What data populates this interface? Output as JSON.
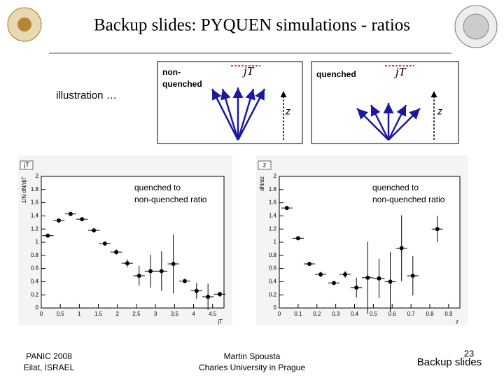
{
  "title": "Backup slides: PYQUEN simulations - ratios",
  "illustration": {
    "caption": "illustration …",
    "left_label": [
      "non-",
      "quenched"
    ],
    "right_label": "quenched",
    "jt_label": "jT",
    "z_label": "z"
  },
  "footer": {
    "left": [
      "PANIC 2008",
      "Eilat, ISRAEL"
    ],
    "center": [
      "Martin Spousta",
      "Charles University in Prague"
    ],
    "right": "Backup slides",
    "page": "23"
  },
  "chart_data": [
    {
      "type": "scatter",
      "stat_label": "jT",
      "annotation": [
        "quenched to",
        "non-quenched ratio"
      ],
      "x_label": "jT",
      "y_label": "1/N dN/djT",
      "color": "#000000",
      "x": [
        0.17,
        0.46,
        0.77,
        1.07,
        1.38,
        1.67,
        1.97,
        2.26,
        2.57,
        2.87,
        3.16,
        3.47,
        3.77,
        4.08,
        4.38,
        4.69
      ],
      "values": [
        1.1,
        1.33,
        1.43,
        1.35,
        1.18,
        0.98,
        0.85,
        0.68,
        0.49,
        0.56,
        0.56,
        0.67,
        0.41,
        0.26,
        0.17,
        0.21
      ],
      "errors": [
        0.02,
        0.02,
        0.02,
        0.02,
        0.02,
        0.03,
        0.04,
        0.06,
        0.15,
        0.25,
        0.3,
        0.45,
        0.03,
        0.12,
        0.2,
        0.04
      ],
      "x_error": 0.15,
      "xlim": [
        0,
        4.8
      ],
      "ylim": [
        0,
        2
      ],
      "xticks": [
        0,
        0.5,
        1,
        1.5,
        2,
        2.5,
        3,
        3.5,
        4,
        4.5
      ],
      "yticks": [
        0,
        0.2,
        0.4,
        0.6,
        0.8,
        1,
        1.2,
        1.4,
        1.6,
        1.8,
        2
      ]
    },
    {
      "type": "scatter",
      "stat_label": "z",
      "annotation": [
        "quenched to",
        "non-quenched ratio"
      ],
      "x_label": "z",
      "y_label": "dN/dz",
      "color": "#000000",
      "x": [
        0.04,
        0.1,
        0.16,
        0.22,
        0.29,
        0.35,
        0.41,
        0.47,
        0.53,
        0.59,
        0.65,
        0.71,
        0.84
      ],
      "values": [
        1.52,
        1.06,
        0.67,
        0.51,
        0.38,
        0.51,
        0.31,
        0.46,
        0.45,
        0.4,
        0.91,
        0.49,
        1.2
      ],
      "errors": [
        0.03,
        0.02,
        0.02,
        0.04,
        0.03,
        0.05,
        0.15,
        0.55,
        0.3,
        0.45,
        0.5,
        0.3,
        0.2
      ],
      "x_error": 0.03,
      "xlim": [
        0,
        0.96
      ],
      "ylim": [
        0,
        2
      ],
      "xticks": [
        0,
        0.1,
        0.2,
        0.3,
        0.4,
        0.5,
        0.6,
        0.7,
        0.8,
        0.9
      ],
      "yticks": [
        0,
        0.2,
        0.4,
        0.6,
        0.8,
        1,
        1.2,
        1.4,
        1.6,
        1.8,
        2
      ]
    }
  ]
}
